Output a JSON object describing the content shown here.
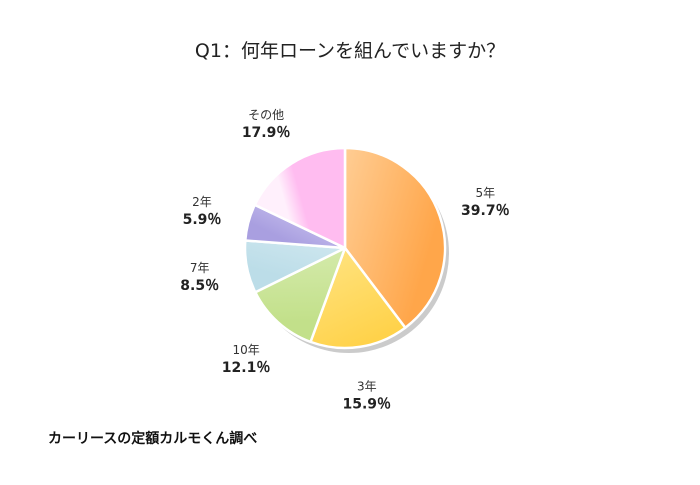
{
  "page": {
    "title": "Q1：何年ローンを組んでいますか？",
    "source_note": "カーリースの定額カルモくん調べ"
  },
  "chart_data": {
    "type": "pie",
    "title": "Q1：何年ローンを組んでいますか？",
    "start": "12 o'clock",
    "direction": "clockwise",
    "slices": [
      {
        "label": "5年",
        "value": 39.7,
        "value_label": "39.7％",
        "color": "#ffa64a",
        "color_light": "#ffe3bd"
      },
      {
        "label": "3年",
        "value": 15.9,
        "value_label": "15.9％",
        "color": "#ffd24a",
        "color_light": "#fff3b2"
      },
      {
        "label": "10年",
        "value": 12.1,
        "value_label": "12.1％",
        "color": "#c2e08a",
        "color_light": "#e8f5cf"
      },
      {
        "label": "7年",
        "value": 8.5,
        "value_label": "8.5％",
        "color": "#bcdde8",
        "color_light": "#e3f2f7"
      },
      {
        "label": "2年",
        "value": 5.9,
        "value_label": "5.9％",
        "color": "#a99fe0",
        "color_light": "#d9d3f6"
      },
      {
        "label": "その他",
        "value": 17.9,
        "value_label": "17.9％",
        "color": "#ffbcf0",
        "color_light": "#fff0fc"
      }
    ]
  }
}
